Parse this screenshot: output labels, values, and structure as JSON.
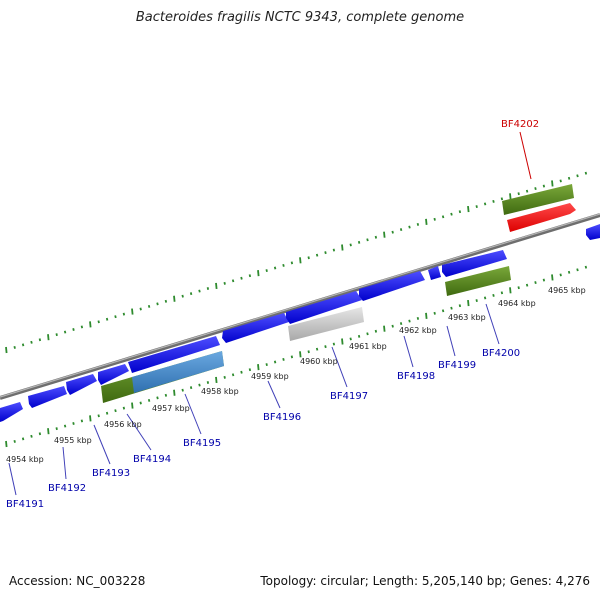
{
  "title": "Bacteroides fragilis NCTC 9343, complete genome",
  "accession": "Accession: NC_003228",
  "summary": "Topology: circular; Length: 5,205,140 bp; Genes: 4,276",
  "colors": {
    "cds": "#1a1aff",
    "rna": "#ff1a1a",
    "gene_green": "#5a8a1a",
    "pseudo": "#bdbdbd",
    "backbone": "#888888",
    "tick": "#2e8b2e",
    "label": "#0000aa",
    "label_highlight": "#cc0000"
  },
  "kbp_labels": [
    "4954 kbp",
    "4955 kbp",
    "4956 kbp",
    "4957 kbp",
    "4958 kbp",
    "4959 kbp",
    "4960 kbp",
    "4961 kbp",
    "4962 kbp",
    "4963 kbp",
    "4964 kbp",
    "4965 kbp"
  ],
  "gene_labels": [
    {
      "id": "BF4191",
      "highlight": false
    },
    {
      "id": "BF4192",
      "highlight": false
    },
    {
      "id": "BF4193",
      "highlight": false
    },
    {
      "id": "BF4194",
      "highlight": false
    },
    {
      "id": "BF4195",
      "highlight": false
    },
    {
      "id": "BF4196",
      "highlight": false
    },
    {
      "id": "BF4197",
      "highlight": false
    },
    {
      "id": "BF4198",
      "highlight": false
    },
    {
      "id": "BF4199",
      "highlight": false
    },
    {
      "id": "BF4200",
      "highlight": false
    },
    {
      "id": "BF4202",
      "highlight": true
    }
  ]
}
